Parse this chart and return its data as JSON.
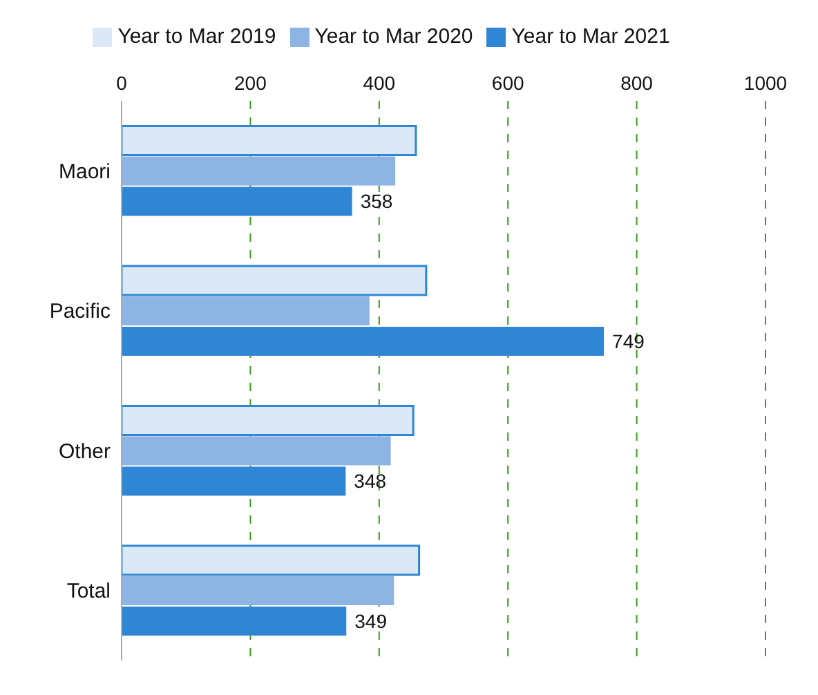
{
  "chart_data": {
    "type": "bar",
    "orientation": "horizontal",
    "categories": [
      "Maori",
      "Pacific",
      "Other",
      "Total"
    ],
    "series": [
      {
        "name": "Year to Mar 2019",
        "color": "#dbe8f7",
        "values": [
          457,
          473,
          453,
          462
        ]
      },
      {
        "name": "Year to Mar 2020",
        "color": "#8db4e2",
        "values": [
          425,
          385,
          418,
          423
        ]
      },
      {
        "name": "Year to Mar 2021",
        "color": "#2e86d4",
        "values": [
          358,
          749,
          348,
          349
        ],
        "value_labels": [
          "358",
          "749",
          "348",
          "349"
        ]
      }
    ],
    "xlim": [
      0,
      1000
    ],
    "xticks": [
      0,
      200,
      400,
      600,
      800,
      1000
    ],
    "grid": "x",
    "legend": "top"
  }
}
